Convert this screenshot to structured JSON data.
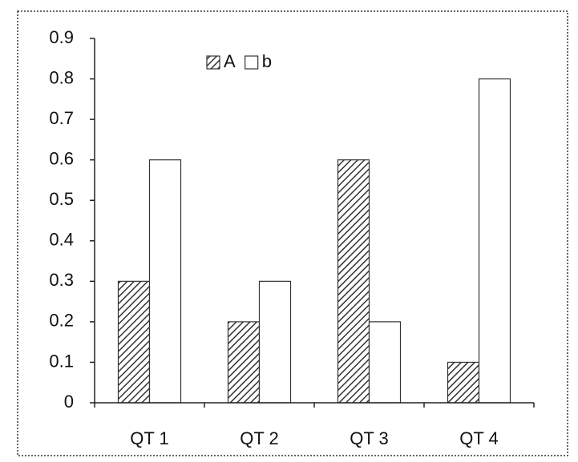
{
  "chart_data": {
    "type": "bar",
    "categories": [
      "QT 1",
      "QT 2",
      "QT 3",
      "QT 4"
    ],
    "series": [
      {
        "name": "A",
        "color": "#333333",
        "hatch": true,
        "values": [
          0.3,
          0.2,
          0.6,
          0.1
        ]
      },
      {
        "name": "b",
        "color": "#ffffff",
        "hatch": false,
        "values": [
          0.6,
          0.3,
          0.2,
          0.8
        ]
      }
    ],
    "ylim": [
      0,
      0.9
    ],
    "yticks": [
      0,
      0.1,
      0.2,
      0.3,
      0.4,
      0.5,
      0.6,
      0.7,
      0.8,
      0.9
    ],
    "grid": false,
    "legend": "top"
  }
}
